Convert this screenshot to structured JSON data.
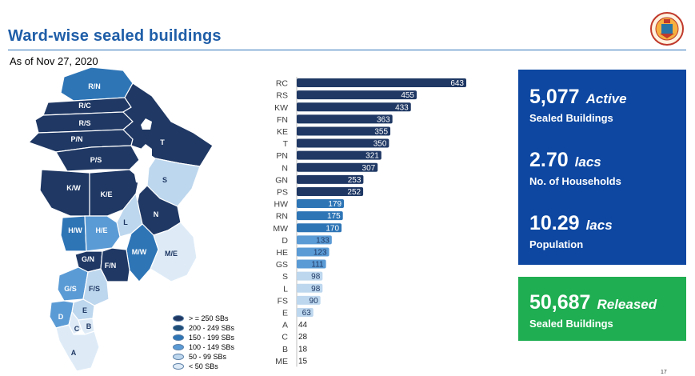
{
  "header": {
    "title": "Ward-wise sealed buildings",
    "subtitle": "As of Nov 27, 2020"
  },
  "colors": {
    "dark": "#1f3864",
    "mid_dark": "#1f4e79",
    "mid": "#2e75b6",
    "mid_light": "#5b9bd5",
    "light": "#bdd7ee",
    "lightest": "#deebf7",
    "title": "#1f5ea8",
    "kpi_blue": "#0d47a1",
    "kpi_green": "#1fae52"
  },
  "map": {
    "wards": [
      {
        "label": "R/N"
      },
      {
        "label": "R/C"
      },
      {
        "label": "R/S"
      },
      {
        "label": "P/N"
      },
      {
        "label": "P/S"
      },
      {
        "label": "T"
      },
      {
        "label": "K/W"
      },
      {
        "label": "K/E"
      },
      {
        "label": "S"
      },
      {
        "label": "N"
      },
      {
        "label": "L"
      },
      {
        "label": "H/W"
      },
      {
        "label": "H/E"
      },
      {
        "label": "M/W"
      },
      {
        "label": "M/E"
      },
      {
        "label": "G/N"
      },
      {
        "label": "F/N"
      },
      {
        "label": "G/S"
      },
      {
        "label": "F/S"
      },
      {
        "label": "E"
      },
      {
        "label": "D"
      },
      {
        "label": "C"
      },
      {
        "label": "B"
      },
      {
        "label": "A"
      }
    ]
  },
  "legend": {
    "items": [
      {
        "label": "> = 250 SBs",
        "color": "#1f3864"
      },
      {
        "label": "200 - 249 SBs",
        "color": "#1f4e79"
      },
      {
        "label": "150 - 199 SBs",
        "color": "#2e75b6"
      },
      {
        "label": "100 - 149 SBs",
        "color": "#5b9bd5"
      },
      {
        "label": "50 - 99 SBs",
        "color": "#bdd7ee"
      },
      {
        "label": "< 50 SBs",
        "color": "#deebf7"
      }
    ]
  },
  "chart_data": {
    "type": "bar",
    "orientation": "horizontal",
    "title": "",
    "xlabel": "",
    "ylabel": "",
    "xlim": [
      0,
      643
    ],
    "categories": [
      "RC",
      "RS",
      "KW",
      "FN",
      "KE",
      "T",
      "PN",
      "N",
      "GN",
      "PS",
      "HW",
      "RN",
      "MW",
      "D",
      "HE",
      "GS",
      "S",
      "L",
      "FS",
      "E",
      "A",
      "C",
      "B",
      "ME"
    ],
    "values": [
      643,
      455,
      433,
      363,
      355,
      350,
      321,
      307,
      253,
      252,
      179,
      175,
      170,
      133,
      123,
      111,
      98,
      98,
      90,
      63,
      44,
      28,
      18,
      15
    ],
    "labels": [
      "643",
      "455",
      "433",
      "363",
      "355",
      "350",
      "321",
      "307",
      "253",
      "252",
      "179",
      "175",
      "170",
      "133",
      "123",
      "111",
      "98",
      "98",
      "90",
      "63",
      "44",
      "28",
      "18",
      "15"
    ]
  },
  "kpis": {
    "active": {
      "number": "5,077",
      "unit": "Active",
      "label": "Sealed Buildings"
    },
    "households": {
      "number": "2.70",
      "unit": "lacs",
      "label": "No. of Households"
    },
    "population": {
      "number": "10.29",
      "unit": "lacs",
      "label": "Population"
    },
    "released": {
      "number": "50,687",
      "unit": "Released",
      "label": "Sealed Buildings"
    }
  },
  "footer": {
    "page_number": "17"
  }
}
